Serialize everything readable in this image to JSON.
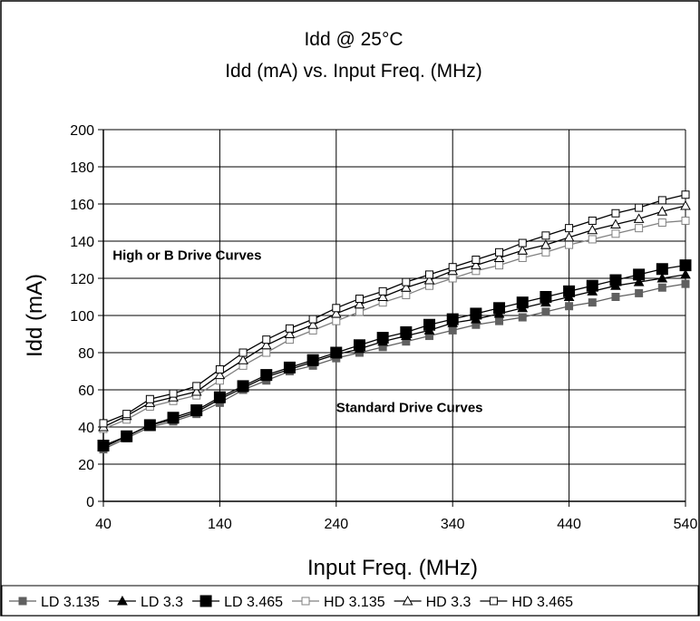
{
  "chart_data": {
    "type": "line",
    "title": "Idd @ 25°C",
    "subtitle": "Idd (mA) vs. Input Freq. (MHz)",
    "xlabel": "Input Freq. (MHz)",
    "ylabel": "Idd (mA)",
    "xlim": [
      40,
      540
    ],
    "ylim": [
      0,
      200
    ],
    "x_ticks": [
      40,
      140,
      240,
      340,
      440,
      540
    ],
    "y_ticks": [
      0,
      20,
      40,
      60,
      80,
      100,
      120,
      140,
      160,
      180,
      200
    ],
    "grid": true,
    "legend_position": "bottom",
    "annotations": [
      {
        "text": "High or B Drive Curves",
        "x": 48,
        "y": 130
      },
      {
        "text": "Standard Drive Curves",
        "x": 240,
        "y": 48
      }
    ],
    "x": [
      40,
      60,
      80,
      100,
      120,
      140,
      160,
      180,
      200,
      220,
      240,
      260,
      280,
      300,
      320,
      340,
      360,
      380,
      400,
      420,
      440,
      460,
      480,
      500,
      520,
      540
    ],
    "series": [
      {
        "name": "LD 3.135",
        "marker": "square-filled-small",
        "color": "#606060",
        "values": [
          28,
          34,
          40,
          43,
          47,
          53,
          60,
          65,
          70,
          73,
          77,
          80,
          83,
          86,
          89,
          92,
          95,
          97,
          99,
          102,
          105,
          107,
          110,
          112,
          115,
          117
        ]
      },
      {
        "name": "LD 3.3",
        "marker": "triangle-filled",
        "color": "#000000",
        "values": [
          29,
          35,
          41,
          44,
          48,
          55,
          61,
          67,
          71,
          75,
          79,
          82,
          86,
          89,
          92,
          96,
          98,
          101,
          104,
          107,
          110,
          113,
          116,
          118,
          120,
          122
        ]
      },
      {
        "name": "LD 3.465",
        "marker": "square-filled-large",
        "color": "#000000",
        "values": [
          30,
          35,
          41,
          45,
          49,
          56,
          62,
          68,
          72,
          76,
          80,
          84,
          88,
          91,
          95,
          98,
          101,
          104,
          107,
          110,
          113,
          116,
          119,
          122,
          125,
          127
        ]
      },
      {
        "name": "HD 3.135",
        "marker": "square-open",
        "color": "#808080",
        "values": [
          39,
          44,
          51,
          54,
          57,
          65,
          73,
          80,
          87,
          92,
          97,
          102,
          107,
          111,
          116,
          120,
          124,
          127,
          131,
          134,
          138,
          141,
          144,
          147,
          150,
          151
        ]
      },
      {
        "name": "HD 3.3",
        "marker": "triangle-open",
        "color": "#000000",
        "values": [
          40,
          46,
          53,
          56,
          59,
          68,
          76,
          84,
          90,
          95,
          101,
          106,
          110,
          115,
          119,
          124,
          127,
          131,
          135,
          138,
          142,
          146,
          149,
          152,
          156,
          159
        ]
      },
      {
        "name": "HD 3.465",
        "marker": "square-open",
        "color": "#000000",
        "values": [
          42,
          47,
          55,
          58,
          62,
          71,
          80,
          87,
          93,
          98,
          104,
          109,
          113,
          118,
          122,
          126,
          130,
          134,
          139,
          143,
          147,
          151,
          155,
          158,
          162,
          165
        ]
      }
    ]
  }
}
